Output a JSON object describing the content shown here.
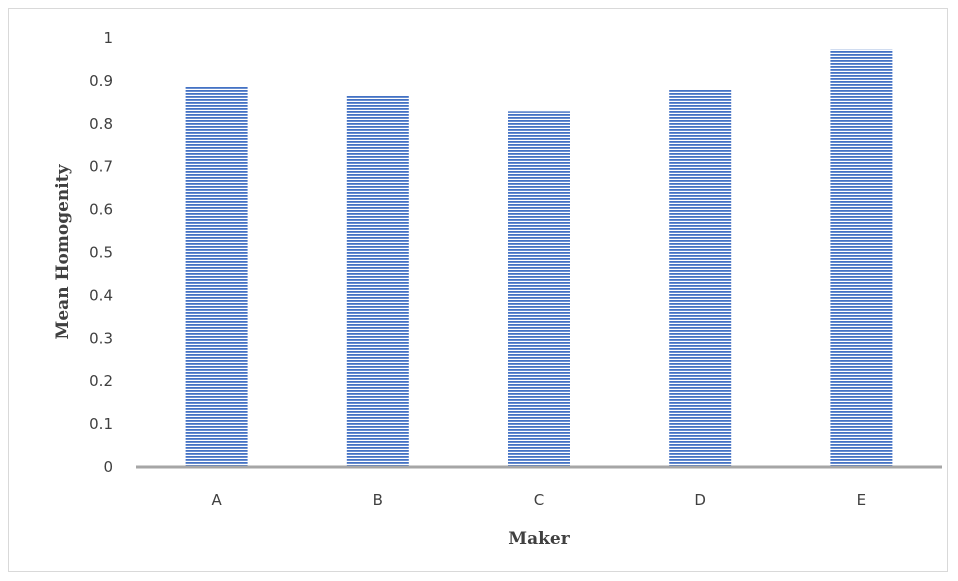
{
  "chart_data": {
    "type": "bar",
    "categories": [
      "A",
      "B",
      "C",
      "D",
      "E"
    ],
    "values": [
      0.887,
      0.866,
      0.829,
      0.881,
      0.973
    ],
    "title": "",
    "xlabel": "Maker",
    "ylabel": "Mean Homogenity",
    "ylim": [
      0,
      1
    ],
    "yticks": [
      "0",
      "0.1",
      "0.2",
      "0.3",
      "0.4",
      "0.5",
      "0.6",
      "0.7",
      "0.8",
      "0.9",
      "1"
    ],
    "grid": false,
    "legend": "none",
    "bar_color": "#4472c4",
    "bar_stripe_color": "#8faadc"
  }
}
